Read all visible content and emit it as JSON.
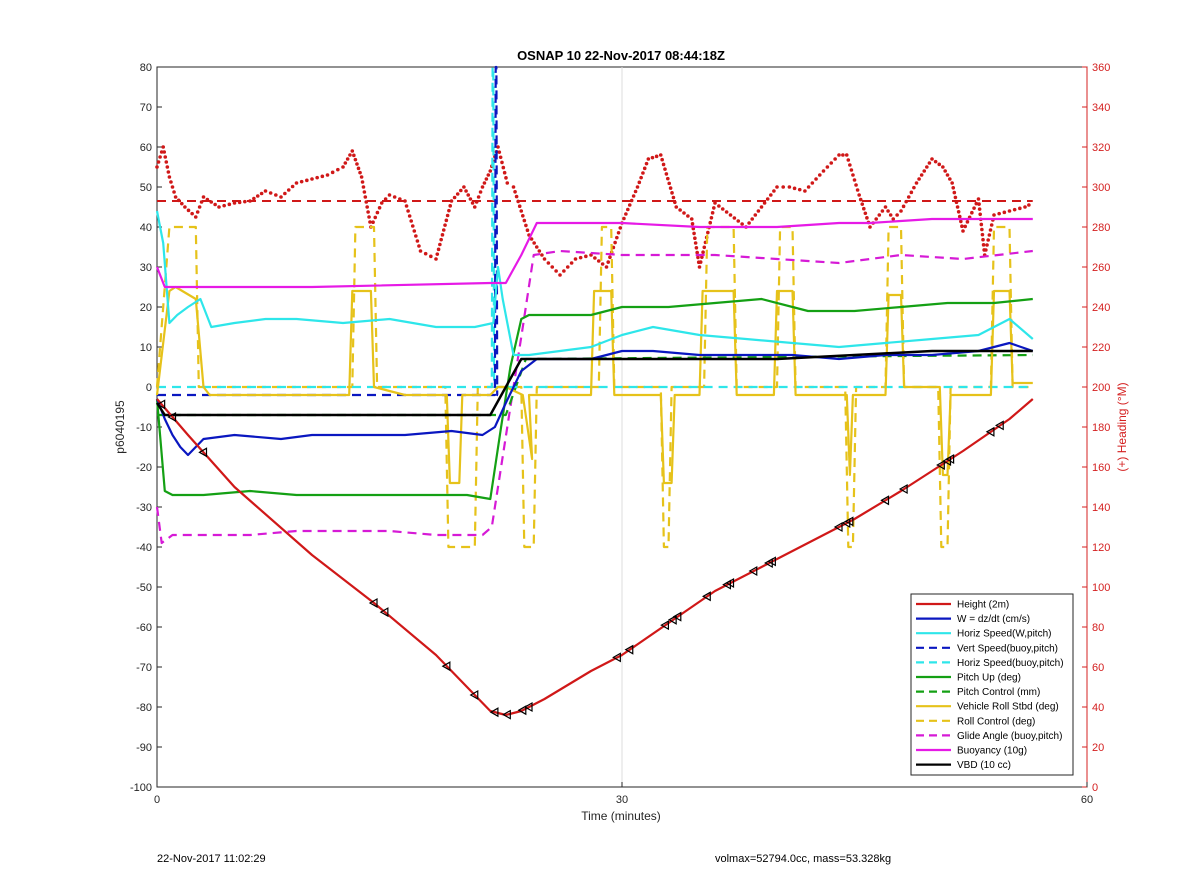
{
  "chart_data": {
    "type": "line",
    "title": "OSNAP 10 22-Nov-2017 08:44:18Z",
    "xlabel": "Time (minutes)",
    "ylabel": "p6040195",
    "y2label": "(+) Heading (°M)",
    "xlim": [
      0,
      60
    ],
    "ylim": [
      -100,
      80
    ],
    "y2lim": [
      0,
      360
    ],
    "xticks": [
      "0",
      "30",
      "60"
    ],
    "yticks": [
      "80",
      "70",
      "60",
      "50",
      "40",
      "30",
      "20",
      "10",
      "0",
      "-10",
      "-20",
      "-30",
      "-40",
      "-50",
      "-60",
      "-70",
      "-80",
      "-90",
      "-100"
    ],
    "y2ticks": [
      "360",
      "340",
      "320",
      "300",
      "280",
      "260",
      "240",
      "220",
      "200",
      "180",
      "160",
      "140",
      "120",
      "100",
      "80",
      "60",
      "40",
      "20",
      "0"
    ],
    "grid": "x",
    "legend_position": "bottom-right",
    "colors": {
      "height": "#d01818",
      "w": "#0a17c0",
      "horiz_w": "#2ee6ea",
      "vert_buoy": "#0a17c0",
      "horiz_buoy": "#2ee6ea",
      "pitch": "#14a014",
      "pitch_ctrl": "#14a014",
      "roll": "#e6c21a",
      "roll_ctrl": "#e6c21a",
      "glide": "#d61ad6",
      "buoyancy": "#e61ae6",
      "vbd": "#000000",
      "heading": "#d01818"
    },
    "series": [
      {
        "name": "Height (2m)",
        "key": "height",
        "style": "solid",
        "x": [
          0,
          2,
          5,
          10,
          14,
          18,
          20,
          21.5,
          22.5,
          23.5,
          25,
          28,
          30,
          33,
          36,
          40,
          45,
          48,
          52,
          55,
          56.5
        ],
        "y": [
          -3,
          -12,
          -25,
          -42,
          -54,
          -67,
          -75,
          -81,
          -82,
          -81,
          -78,
          -71,
          -67,
          -59,
          -51,
          -43,
          -33,
          -26,
          -16,
          -8,
          -3
        ]
      },
      {
        "name": "W = dz/dt (cm/s)",
        "key": "w",
        "style": "solid",
        "x": [
          0,
          0.5,
          1,
          1.5,
          2,
          3,
          5,
          8,
          10,
          13,
          16,
          19,
          21,
          21.8,
          22.5,
          23.5,
          24.5,
          26,
          28,
          30,
          32,
          35,
          38,
          41,
          44,
          47,
          50,
          53,
          55,
          56.5
        ],
        "y": [
          -3,
          -8,
          -12,
          -15,
          -17,
          -13,
          -12,
          -13,
          -12,
          -12,
          -12,
          -11,
          -12,
          -10,
          -4,
          4,
          7,
          7,
          7,
          9,
          9,
          8,
          8,
          8,
          7,
          8,
          8,
          9,
          11,
          9
        ]
      },
      {
        "name": "Horiz Speed(W,pitch)",
        "key": "horiz_w",
        "style": "solid",
        "x": [
          0,
          0.4,
          0.8,
          1.3,
          2,
          2.8,
          3.5,
          5,
          7,
          9,
          12,
          15,
          18,
          20.5,
          21.7,
          22,
          22.3,
          23,
          24,
          26,
          28,
          30,
          32,
          35,
          38,
          41,
          44,
          47,
          50,
          53,
          55,
          56.5
        ],
        "y": [
          44,
          36,
          16,
          18,
          20,
          22,
          15,
          16,
          17,
          17,
          16,
          17,
          15,
          15,
          16,
          30,
          22,
          8,
          8,
          9,
          10,
          13,
          15,
          13,
          12,
          11,
          10,
          11,
          12,
          13,
          17,
          12
        ]
      },
      {
        "name": "Vert Speed(buoy,pitch)",
        "key": "vert_buoy",
        "style": "dash",
        "x": [
          0,
          21.7,
          21.8,
          21.85,
          21.9,
          21.95,
          22
        ],
        "y": [
          -2,
          -2,
          -2,
          80,
          80,
          -2,
          -2
        ]
      },
      {
        "name": "Horiz Speed(buoy,pitch)",
        "key": "horiz_buoy",
        "style": "dash",
        "x": [
          0,
          21.5,
          21.6,
          21.65,
          21.7,
          21.75,
          21.8,
          22.5,
          56.5
        ],
        "y": [
          0,
          0,
          0,
          80,
          80,
          0,
          0,
          0,
          0
        ]
      },
      {
        "name": "Pitch Up (deg)",
        "key": "pitch",
        "style": "solid",
        "x": [
          0,
          0.5,
          1,
          3,
          6,
          9,
          12,
          15,
          18,
          20,
          21.5,
          22.2,
          22.8,
          23.5,
          24,
          26,
          28,
          30,
          33,
          36,
          39,
          42,
          45,
          48,
          51,
          54,
          56.5
        ],
        "y": [
          -3,
          -26,
          -27,
          -27,
          -26,
          -27,
          -27,
          -27,
          -27,
          -27,
          -28,
          -10,
          5,
          17,
          18,
          18,
          18,
          20,
          20,
          21,
          22,
          19,
          19,
          20,
          21,
          21,
          22
        ]
      },
      {
        "name": "Pitch Control (mm)",
        "key": "pitch_ctrl",
        "style": "dash",
        "x": [
          0,
          21.5,
          22.5,
          23.8,
          56.5
        ],
        "y": [
          -7,
          -7,
          -7,
          7,
          8
        ]
      },
      {
        "name": "Vehicle Roll Stbd (deg)",
        "key": "roll",
        "style": "solid",
        "x": [
          0,
          0.8,
          1.2,
          2.5,
          3,
          3.4,
          5,
          10,
          12.4,
          12.6,
          13.8,
          14,
          16,
          18.7,
          18.9,
          19.5,
          19.7,
          20.5,
          21.5,
          22,
          22.5,
          23.6,
          24.2,
          24,
          25,
          28,
          28.2,
          29.3,
          29.5,
          32.5,
          32.7,
          33.2,
          33.4,
          35,
          35.2,
          37.2,
          37.4,
          39.8,
          40,
          41,
          41.2,
          44.5,
          44.7,
          44.9,
          47,
          47.2,
          48,
          48.2,
          50.5,
          50.7,
          51,
          51.2,
          53.8,
          54,
          55,
          55.2,
          56.5
        ],
        "y": [
          -2,
          24,
          25,
          22,
          0,
          -2,
          -2,
          -2,
          -2,
          24,
          24,
          0,
          -2,
          -2,
          -24,
          -24,
          -2,
          -2,
          -2,
          0,
          0,
          -2,
          -18,
          -2,
          -2,
          -2,
          24,
          24,
          -2,
          -2,
          -24,
          -24,
          -2,
          -2,
          24,
          24,
          -2,
          -2,
          24,
          24,
          -2,
          -2,
          -22,
          -2,
          -2,
          23,
          23,
          0,
          0,
          -22,
          -22,
          -2,
          -2,
          24,
          24,
          1,
          1
        ]
      },
      {
        "name": "Roll Control (deg)",
        "key": "roll_ctrl",
        "style": "dash",
        "x": [
          0,
          0.8,
          1,
          2.5,
          2.7,
          12.6,
          12.8,
          14,
          14.2,
          18.6,
          18.8,
          20.5,
          20.7,
          23.5,
          23.7,
          24.3,
          24.5,
          28.5,
          28.7,
          29.3,
          29.5,
          32.5,
          32.7,
          33,
          33.2,
          35.3,
          35.5,
          37.2,
          37.4,
          40,
          40.2,
          41,
          41.2,
          44.4,
          44.6,
          44.9,
          45.1,
          47,
          47.2,
          48,
          48.2,
          50.4,
          50.6,
          51,
          51.2,
          53.8,
          54,
          55,
          55.2,
          56.5
        ],
        "y": [
          0,
          40,
          40,
          40,
          0,
          0,
          40,
          40,
          0,
          0,
          -40,
          -40,
          0,
          0,
          -40,
          -40,
          0,
          0,
          40,
          40,
          0,
          0,
          -40,
          -40,
          0,
          0,
          40,
          40,
          0,
          0,
          40,
          40,
          0,
          0,
          -40,
          -40,
          0,
          0,
          40,
          40,
          0,
          0,
          -40,
          -40,
          0,
          0,
          40,
          40,
          0,
          0
        ]
      },
      {
        "name": "Glide Angle (buoy,pitch)",
        "key": "glide",
        "style": "dash",
        "x": [
          0,
          0.3,
          1,
          3,
          6,
          9,
          12,
          15,
          18,
          21,
          21.6,
          22.6,
          23.6,
          24.3,
          26,
          30,
          33,
          36,
          40,
          44,
          48,
          52,
          56.5
        ],
        "y": [
          -30,
          -39,
          -37,
          -37,
          -37,
          -36,
          -36,
          -36,
          -37,
          -37,
          -35,
          -10,
          15,
          33,
          34,
          33,
          33,
          33,
          32,
          31,
          33,
          32,
          34
        ]
      },
      {
        "name": "Buoyancy (10g)",
        "key": "buoyancy",
        "style": "solid",
        "x": [
          0,
          0.5,
          1,
          10,
          21.5,
          22.5,
          23.5,
          24.5,
          30,
          35,
          40,
          44,
          46,
          50,
          56.5
        ],
        "y": [
          30,
          25,
          25,
          25,
          26,
          26,
          33,
          41,
          41,
          40,
          40,
          41,
          41,
          42,
          42
        ]
      },
      {
        "name": "VBD (10 cc)",
        "key": "vbd",
        "style": "solid",
        "x": [
          0,
          0.5,
          1,
          10,
          21,
          21.5,
          22.5,
          23.5,
          24.5,
          30,
          40,
          45,
          50,
          56.5
        ],
        "y": [
          -4,
          -7,
          -7,
          -7,
          -7,
          -7,
          0,
          7,
          7,
          7,
          7,
          8,
          9,
          9
        ]
      }
    ],
    "heading": {
      "name": "(+) Heading (°M)",
      "style": "dotted",
      "axis": "right",
      "x": [
        0,
        0.4,
        0.8,
        1.2,
        1.8,
        2.5,
        3,
        4,
        5,
        6,
        7,
        8,
        9,
        10,
        11,
        12,
        12.6,
        13.2,
        13.8,
        14.5,
        15,
        16,
        17,
        18,
        19,
        19.8,
        20.5,
        21,
        21.5,
        22,
        22.6,
        23,
        24,
        25,
        26,
        27,
        28,
        29,
        30,
        31,
        31.7,
        32.5,
        33.5,
        34.5,
        35,
        36,
        37,
        38,
        39,
        40,
        40.8,
        41.8,
        43,
        44,
        44.5,
        45.3,
        46,
        47,
        47.5,
        48,
        49,
        50,
        50.7,
        51.3,
        52,
        53,
        53.4,
        54,
        55,
        56,
        56.5
      ],
      "y": [
        310,
        320,
        305,
        295,
        290,
        285,
        295,
        290,
        292,
        293,
        298,
        295,
        302,
        304,
        306,
        310,
        318,
        305,
        280,
        292,
        296,
        293,
        268,
        264,
        293,
        300,
        290,
        300,
        308,
        320,
        302,
        300,
        276,
        264,
        256,
        264,
        266,
        260,
        282,
        300,
        314,
        316,
        290,
        284,
        260,
        292,
        286,
        280,
        290,
        300,
        300,
        298,
        308,
        316,
        316,
        296,
        280,
        290,
        284,
        288,
        302,
        314,
        310,
        302,
        278,
        294,
        266,
        286,
        288,
        290,
        292
      ],
      "hline": 293
    }
  },
  "footer": {
    "timestamp": "22-Nov-2017 11:02:29",
    "volmax": "volmax=52794.0cc, mass=53.328kg"
  }
}
